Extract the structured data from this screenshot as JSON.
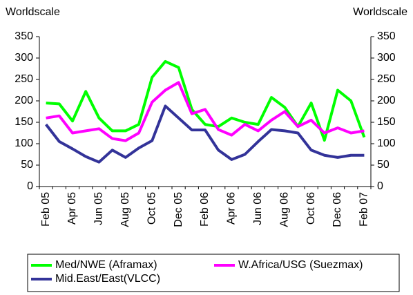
{
  "chart_data": {
    "type": "line",
    "ylabel": "Worldscale",
    "y2label": "Worldscale",
    "categories": [
      "Feb 05",
      null,
      "Apr 05",
      null,
      "Jun 05",
      null,
      "Aug 05",
      null,
      "Oct 05",
      null,
      "Dec 05",
      null,
      "Feb 06",
      null,
      "Apr 06",
      null,
      "Jun 06",
      null,
      "Aug 06",
      null,
      "Oct 06",
      null,
      "Dec 06",
      null,
      "Feb 07"
    ],
    "series": [
      {
        "name": "Med/NWE (Aframax)",
        "color": "#00ff00",
        "values": [
          195,
          193,
          153,
          222,
          160,
          130,
          130,
          145,
          255,
          292,
          278,
          180,
          145,
          140,
          160,
          150,
          145,
          208,
          185,
          140,
          195,
          108,
          225,
          200,
          115
        ]
      },
      {
        "name": "W.Africa/USG (Suezmax)",
        "color": "#ff00ff",
        "values": [
          160,
          165,
          125,
          130,
          135,
          112,
          107,
          125,
          197,
          225,
          243,
          170,
          180,
          133,
          120,
          145,
          130,
          155,
          175,
          140,
          155,
          125,
          137,
          125,
          130
        ]
      },
      {
        "name": "Mid.East/East(VLCC)",
        "color": "#333399",
        "values": [
          145,
          105,
          88,
          70,
          57,
          85,
          68,
          90,
          107,
          188,
          160,
          132,
          132,
          85,
          63,
          75,
          105,
          133,
          130,
          125,
          85,
          73,
          68,
          73,
          73
        ]
      }
    ],
    "ylim": [
      0,
      350
    ],
    "yticks": [
      0,
      50,
      100,
      150,
      200,
      250,
      300,
      350
    ],
    "y2lim": [
      0,
      350
    ],
    "y2ticks": [
      0,
      50,
      100,
      150,
      200,
      250,
      300,
      350
    ],
    "grid": false
  }
}
